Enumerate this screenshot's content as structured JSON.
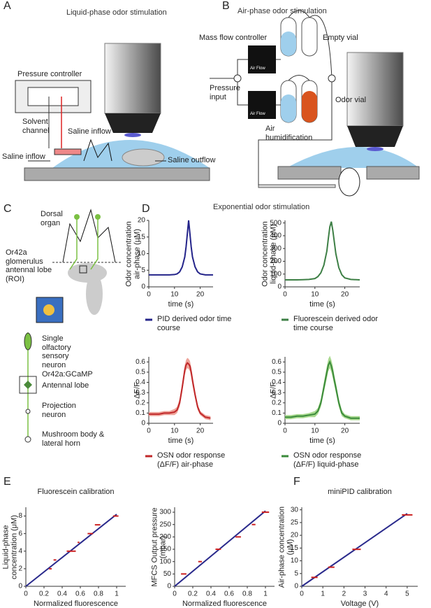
{
  "panel_letters": [
    "A",
    "B",
    "C",
    "D",
    "E",
    "F"
  ],
  "panel_a": {
    "title": "Liquid-phase odor stimulation",
    "pressure_controller": "Pressure controller",
    "solvent_channel": "Solvent channel",
    "saline_inflow_top": "Saline inflow",
    "saline_inflow_left": "Saline inflow",
    "saline_outflow": "Saline outflow"
  },
  "panel_b": {
    "title": "Air-phase odor stimulation",
    "mass_flow_controller": "Mass flow controller",
    "empty_vial": "Empty vial",
    "pressure_input": "Pressure input",
    "odor_vial": "Odor vial",
    "air_humidification": "Air humidification",
    "air_flow_labels": [
      "Air Flow",
      "Air Flow"
    ]
  },
  "panel_c": {
    "dorsal_organ": "Dorsal organ",
    "glomerulus": "Or42a glomerulus antennal lobe (ROI)",
    "sensory_neuron": "Single olfactory sensory neuron Or42a:GCaMP",
    "antennal_lobe": "Antennal lobe",
    "projection_neuron": "Projection neuron",
    "mushroom_body": "Mushroom body & lateral horn"
  },
  "panel_d": {
    "title": "Exponential odor stimulation"
  },
  "chart_data": [
    {
      "type": "line",
      "x_label": "time (s)",
      "y_label": "Odor concentration air-phase (μM)",
      "x": [
        0,
        2,
        4,
        6,
        8,
        10,
        11,
        12,
        13,
        14,
        14.5,
        15,
        15.5,
        16,
        16.5,
        17,
        18,
        19,
        20,
        22,
        25
      ],
      "xlim": [
        0,
        25
      ],
      "xticks": [
        0,
        10,
        20
      ],
      "ylim": [
        0,
        20
      ],
      "yticks": [
        0,
        5,
        10,
        15,
        20
      ],
      "series": [
        {
          "name": "PID derived odor time course",
          "color": "#24248a",
          "values": [
            3.6,
            3.6,
            3.6,
            3.6,
            3.6,
            3.7,
            3.9,
            4.5,
            6,
            9,
            12,
            16,
            20,
            16,
            12,
            9,
            6,
            4.5,
            3.9,
            3.6,
            3.6
          ]
        }
      ]
    },
    {
      "type": "line",
      "x_label": "time (s)",
      "y_label": "Odor concentration liquid-phase (μM)",
      "x": [
        0,
        2,
        4,
        6,
        8,
        10,
        11,
        12,
        13,
        14,
        14.5,
        15,
        15.5,
        16,
        16.5,
        17,
        18,
        19,
        20,
        22,
        25
      ],
      "xlim": [
        0,
        25
      ],
      "xticks": [
        0,
        10,
        20
      ],
      "ylim": [
        0,
        520
      ],
      "yticks": [
        0,
        100,
        200,
        300,
        400,
        500
      ],
      "series": [
        {
          "name": "Fluorescein derived odor time course",
          "color": "#3d7f45",
          "values": [
            55,
            55,
            55,
            56,
            58,
            65,
            80,
            110,
            170,
            280,
            380,
            470,
            510,
            440,
            350,
            260,
            150,
            95,
            70,
            58,
            55
          ]
        }
      ]
    },
    {
      "type": "line",
      "x_label": "time (s)",
      "y_label": "ΔF/F",
      "x": [
        0,
        2,
        4,
        6,
        8,
        10,
        11,
        12,
        13,
        14,
        14.5,
        15,
        15.5,
        16,
        16.5,
        17,
        18,
        19,
        20,
        22,
        24
      ],
      "xlim": [
        0,
        25
      ],
      "xticks": [
        0,
        10,
        20
      ],
      "ylim": [
        0,
        0.65
      ],
      "yticks": [
        0,
        0.1,
        0.2,
        0.3,
        0.4,
        0.5,
        0.6
      ],
      "series": [
        {
          "name": "OSN odor response (ΔF/F) air-phase",
          "color": "#c0282a",
          "band_color": "#eea49a",
          "values": [
            0.09,
            0.09,
            0.09,
            0.1,
            0.1,
            0.11,
            0.13,
            0.2,
            0.35,
            0.52,
            0.57,
            0.59,
            0.58,
            0.56,
            0.5,
            0.42,
            0.28,
            0.16,
            0.1,
            0.06,
            0.05
          ],
          "error": [
            0.02,
            0.02,
            0.02,
            0.02,
            0.02,
            0.03,
            0.03,
            0.04,
            0.05,
            0.05,
            0.05,
            0.05,
            0.05,
            0.05,
            0.05,
            0.05,
            0.04,
            0.03,
            0.02,
            0.02,
            0.02
          ]
        }
      ]
    },
    {
      "type": "line",
      "x_label": "time (s)",
      "y_label": "ΔF/F",
      "x": [
        0,
        2,
        4,
        6,
        8,
        10,
        11,
        12,
        13,
        14,
        14.5,
        15,
        15.5,
        16,
        16.5,
        17,
        18,
        19,
        20,
        22,
        25
      ],
      "xlim": [
        0,
        25
      ],
      "xticks": [
        0,
        10,
        20
      ],
      "ylim": [
        0,
        0.65
      ],
      "yticks": [
        0,
        0.1,
        0.2,
        0.3,
        0.4,
        0.5,
        0.6
      ],
      "series": [
        {
          "name": "OSN odor response (ΔF/F) liquid-phase",
          "color": "#3a8a3a",
          "band_color": "#a9d98f",
          "values": [
            0.06,
            0.06,
            0.07,
            0.07,
            0.08,
            0.09,
            0.12,
            0.2,
            0.35,
            0.5,
            0.57,
            0.6,
            0.56,
            0.5,
            0.42,
            0.35,
            0.2,
            0.1,
            0.07,
            0.05,
            0.05
          ],
          "error": [
            0.02,
            0.02,
            0.02,
            0.02,
            0.02,
            0.03,
            0.03,
            0.04,
            0.05,
            0.06,
            0.06,
            0.06,
            0.06,
            0.06,
            0.05,
            0.05,
            0.04,
            0.03,
            0.02,
            0.02,
            0.02
          ]
        }
      ]
    },
    {
      "type": "scatter",
      "title": "Fluorescein calibration",
      "x_label": "Normalized fluorescence",
      "y_label": "Liquid-phase concentration (μM)",
      "xlim": [
        0,
        1.1
      ],
      "xticks": [
        0,
        0.2,
        0.4,
        0.6,
        0.8,
        1
      ],
      "ylim": [
        0,
        9
      ],
      "yticks": [
        0,
        2,
        4,
        6,
        8
      ],
      "x": [
        0.27,
        0.32,
        0.5,
        0.58,
        0.71,
        0.79,
        0.99
      ],
      "x_error": [
        0.015,
        0.015,
        0.05,
        0.01,
        0.03,
        0.03,
        0.03
      ],
      "values": [
        2,
        3,
        4,
        5,
        6,
        7,
        8
      ],
      "color": "#cc2222",
      "fit": {
        "x": [
          0,
          1
        ],
        "values": [
          0,
          8.2
        ],
        "color": "#2a2a8c"
      }
    },
    {
      "type": "scatter",
      "x_label": "Normalized fluorescence",
      "y_label": "MFCS Output pressure (mbar)",
      "xlim": [
        0,
        1.1
      ],
      "xticks": [
        0,
        0.2,
        0.4,
        0.6,
        0.8,
        1
      ],
      "ylim": [
        0,
        320
      ],
      "yticks": [
        0,
        50,
        100,
        150,
        200,
        250,
        300
      ],
      "x": [
        0.1,
        0.28,
        0.48,
        0.7,
        0.87,
        1.0
      ],
      "x_error": [
        0.03,
        0.02,
        0.03,
        0.03,
        0.02,
        0.04
      ],
      "values": [
        50,
        100,
        150,
        200,
        250,
        300
      ],
      "color": "#cc2222",
      "fit": {
        "x": [
          0,
          1
        ],
        "values": [
          0,
          305
        ],
        "color": "#2a2a8c"
      }
    },
    {
      "type": "scatter",
      "title": "miniPID calibration",
      "x_label": "Voltage (V)",
      "y_label": "Air-phase concentration (μM)",
      "xlim": [
        0,
        5.5
      ],
      "xticks": [
        0,
        1,
        2,
        3,
        4,
        5
      ],
      "ylim": [
        0,
        31
      ],
      "yticks": [
        0,
        5,
        10,
        15,
        20,
        25,
        30
      ],
      "x": [
        0.6,
        1.4,
        2.6,
        5.0
      ],
      "x_error": [
        0.15,
        0.15,
        0.2,
        0.25
      ],
      "values": [
        3.5,
        7.5,
        14.5,
        28
      ],
      "color": "#cc2222",
      "fit": {
        "x": [
          0,
          5
        ],
        "values": [
          0,
          28.5
        ],
        "color": "#2a2a8c"
      }
    }
  ]
}
